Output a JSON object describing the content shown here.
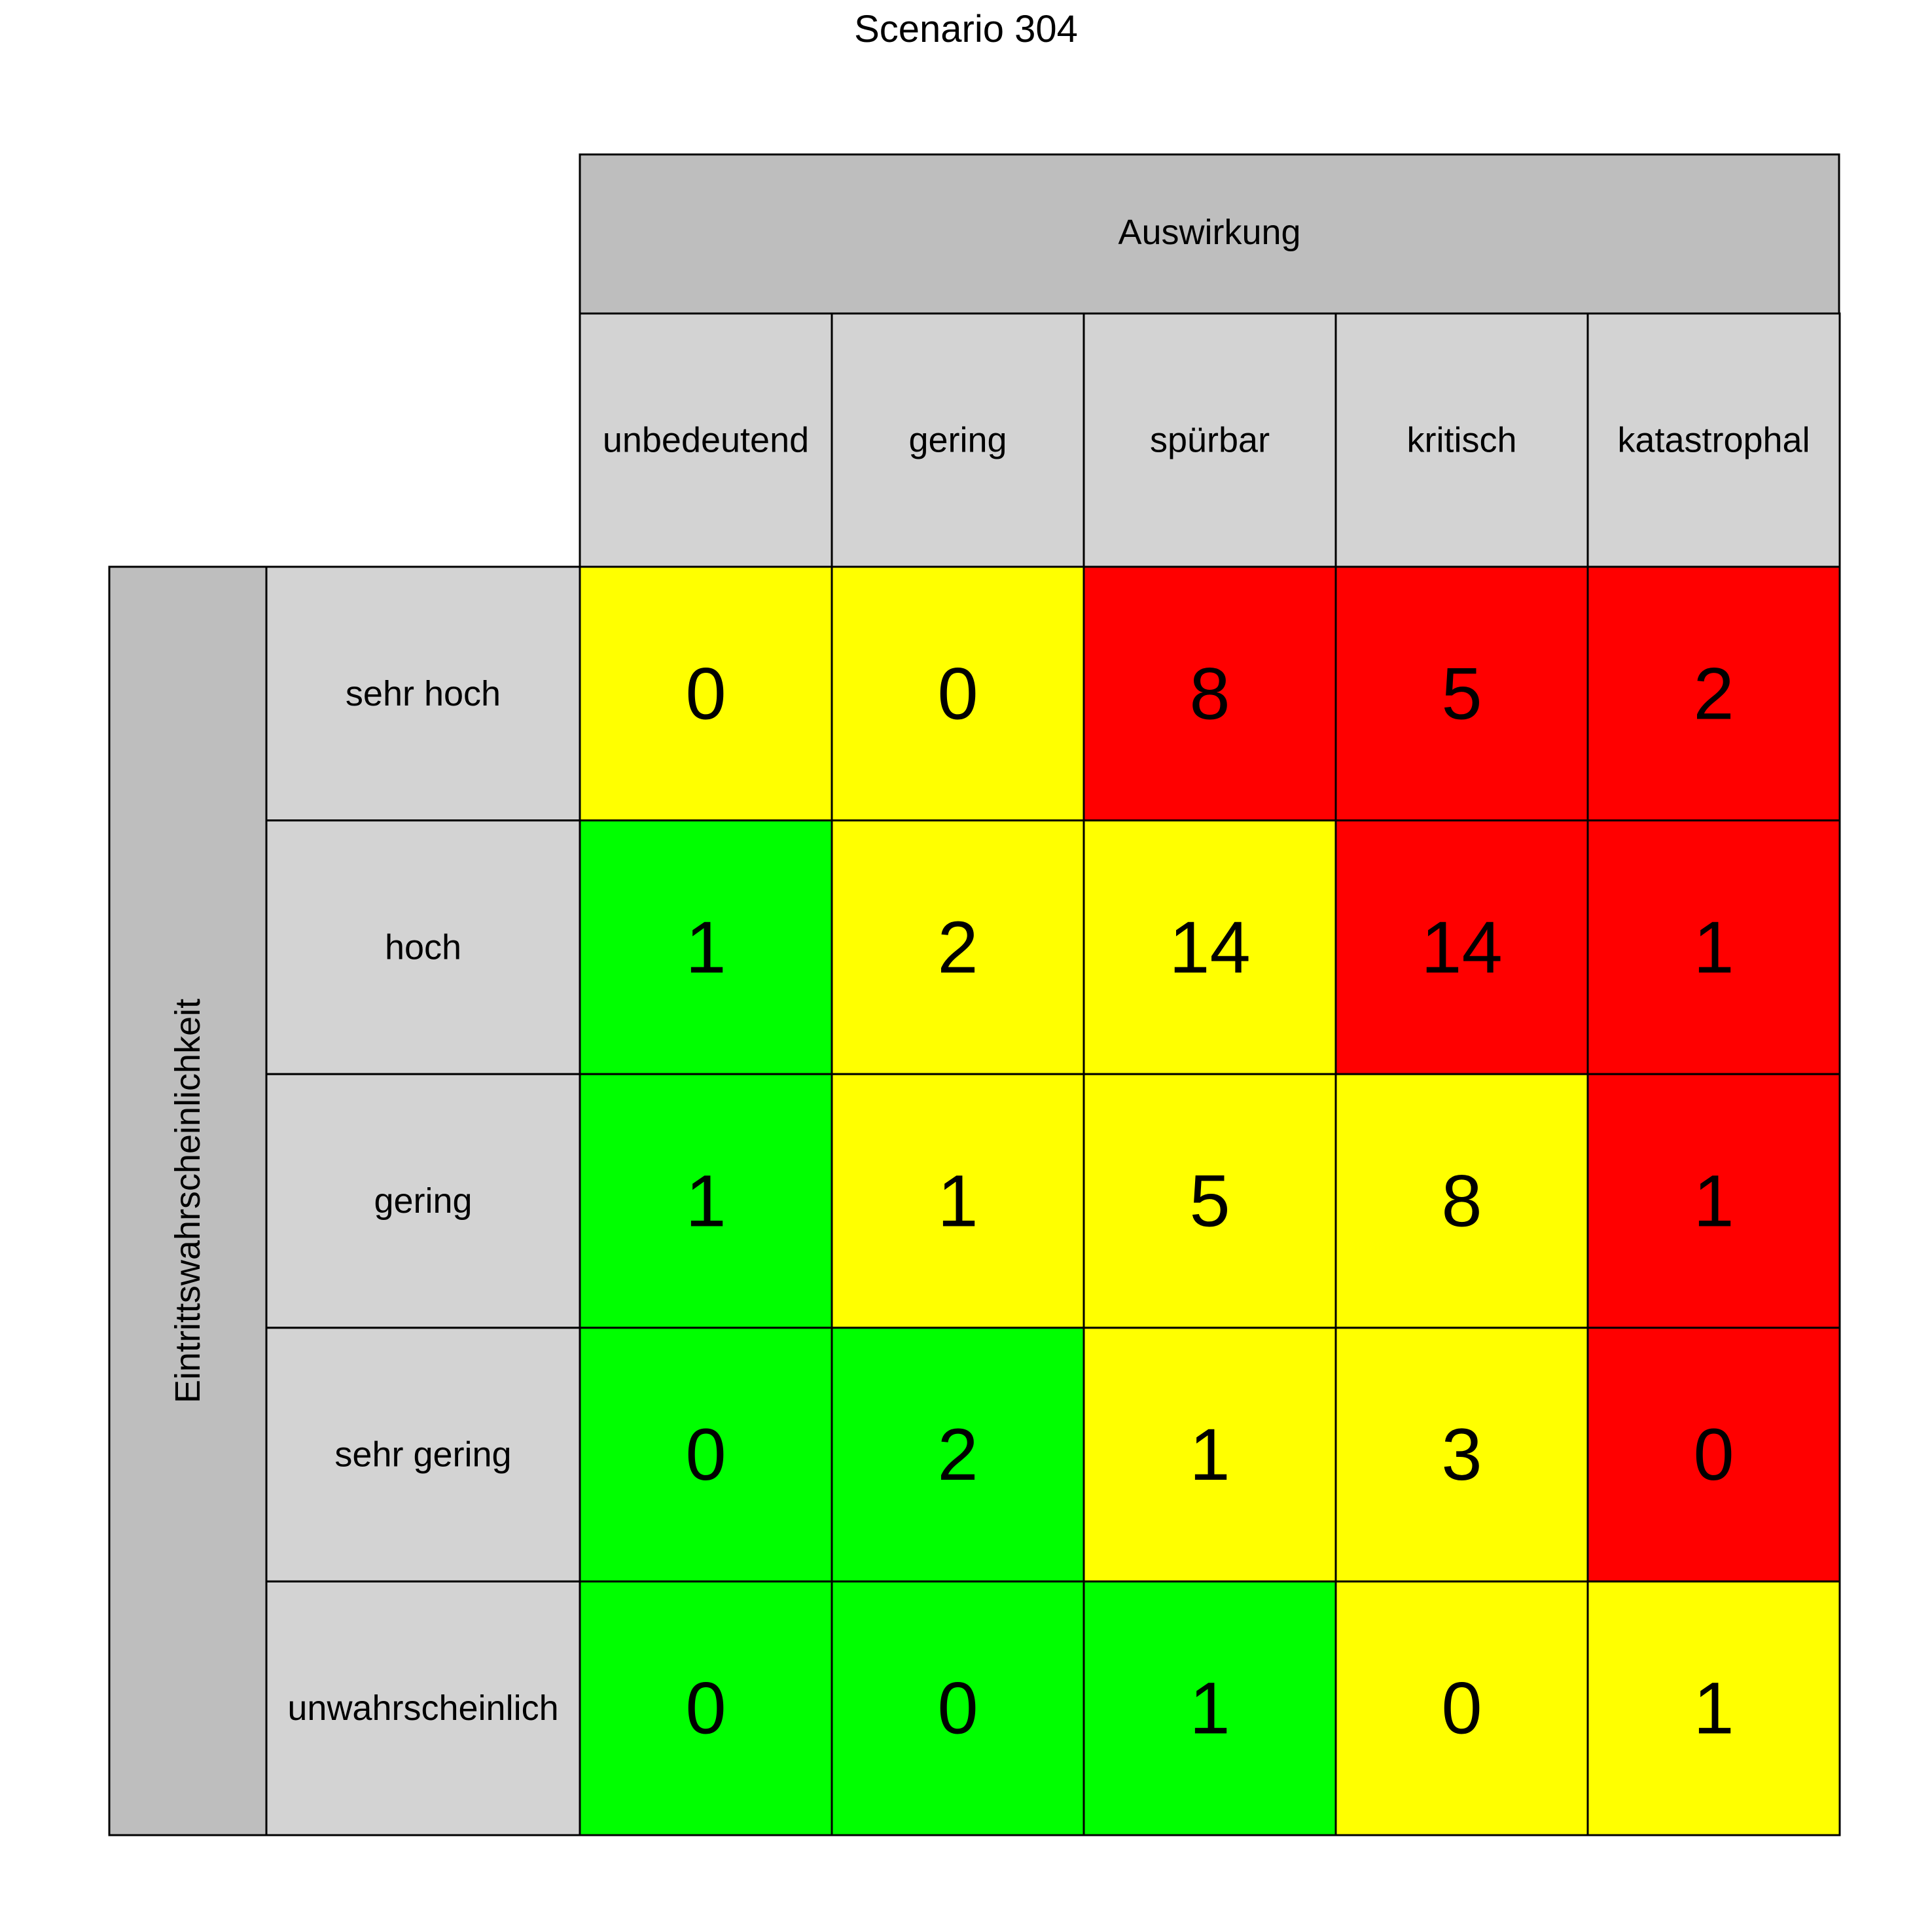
{
  "chart_data": {
    "type": "heatmap",
    "title": "Scenario 304",
    "x_header": "Auswirkung",
    "y_header": "Eintrittswahrscheinlichkeit",
    "columns": [
      "unbedeutend",
      "gering",
      "spürbar",
      "kritisch",
      "katastrophal"
    ],
    "rows": [
      "sehr hoch",
      "hoch",
      "gering",
      "sehr gering",
      "unwahrscheinlich"
    ],
    "values": [
      [
        0,
        0,
        8,
        5,
        2
      ],
      [
        1,
        2,
        14,
        14,
        1
      ],
      [
        1,
        1,
        5,
        8,
        1
      ],
      [
        0,
        2,
        1,
        3,
        0
      ],
      [
        0,
        0,
        1,
        0,
        1
      ]
    ],
    "cell_levels": [
      [
        "yellow",
        "yellow",
        "red",
        "red",
        "red"
      ],
      [
        "green",
        "yellow",
        "yellow",
        "red",
        "red"
      ],
      [
        "green",
        "yellow",
        "yellow",
        "yellow",
        "red"
      ],
      [
        "green",
        "green",
        "yellow",
        "yellow",
        "red"
      ],
      [
        "green",
        "green",
        "green",
        "yellow",
        "yellow"
      ]
    ],
    "colors": {
      "green": "#00ff00",
      "yellow": "#ffff00",
      "red": "#ff0000",
      "header_dark": "#bebebe",
      "header_light": "#d3d3d3"
    }
  }
}
